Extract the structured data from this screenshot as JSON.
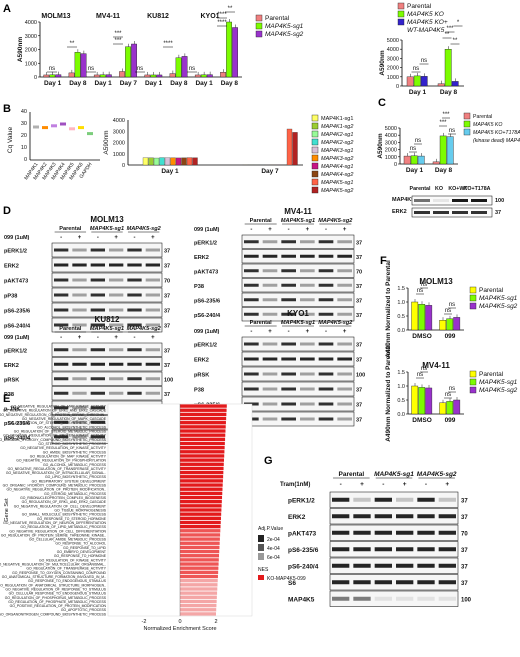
{
  "panels": {
    "A": "A",
    "B": "B",
    "C": "C",
    "D": "D",
    "E": "E",
    "F": "F",
    "G": "G"
  },
  "colors": {
    "parental": "#f08080",
    "sg1": "#7cfc00",
    "sg2": "#9932cc",
    "ko_wt": "#3322cc",
    "ko_t178a": "#66ccee",
    "yellow": "#ffff00",
    "bar_red": "#e31a1c",
    "bar_pink": "#f4a6a6"
  },
  "panel_A_left": {
    "title_cells": [
      "MOLM13",
      "MV4-11",
      "KU812",
      "KYO1"
    ],
    "ylabel": "A590nm",
    "yticks": [
      "0",
      "1000",
      "2000",
      "3000",
      "4000"
    ],
    "xlabels": [
      "Day 1",
      "Day 8",
      "Day 1",
      "Day 7",
      "Day 1",
      "Day 8",
      "Day 1",
      "Day 8"
    ],
    "legend": [
      "Parental",
      "MAP4K5-sg1",
      "MAP4K5-sg2"
    ],
    "sig": [
      "ns",
      "**",
      "ns",
      "***",
      "***",
      "ns",
      "****",
      "ns",
      "****",
      "**",
      "****"
    ]
  },
  "panel_A_right": {
    "ylabel": "A590nm",
    "yticks": [
      "0",
      "1000",
      "2000",
      "3000",
      "4000",
      "5000"
    ],
    "xlabels": [
      "Day 1",
      "Day 8"
    ],
    "legend": [
      "Parental",
      "MAP4K5 KO",
      "MAP4K5 KO+",
      "WT-MAP4K5"
    ],
    "sig": [
      "ns",
      "ns",
      "**",
      "***",
      "*",
      "**"
    ]
  },
  "panel_B": {
    "ylabel_left": "Cq Value",
    "yticks_left": [
      "0",
      "10",
      "20",
      "30",
      "40"
    ],
    "genes": [
      "MAP4K1",
      "MAP4K2",
      "MAP4K3",
      "MAP4K4",
      "MAP4K5",
      "MAP4K6",
      "GAPDH"
    ],
    "ylabel_right": "A590nm",
    "yticks_right": [
      "0",
      "1000",
      "2000",
      "3000",
      "4000"
    ],
    "xlabels": [
      "Day 1",
      "Day 7"
    ],
    "legend": [
      "MAP4K1-sg1",
      "MAP4K1-sg2",
      "MAP4K2-sg1",
      "MAP4K2-sg2",
      "MAP4K3-sg1",
      "MAP4K3-sg2",
      "MAP4K4-sg1",
      "MAP4K4-sg2",
      "MAP4K5-sg1",
      "MAP4K5-sg2"
    ]
  },
  "panel_C": {
    "ylabel": "A590nm",
    "yticks": [
      "0",
      "1000",
      "2000",
      "3000",
      "4000",
      "5000"
    ],
    "xlabels": [
      "Day 1",
      "Day 8"
    ],
    "legend": [
      "Parental",
      "MAP4K5 KO",
      "MAP4K5 KO+T178A",
      "(kinase dead) MAP4K5"
    ],
    "sig": [
      "ns",
      "ns",
      "***",
      "***",
      "ns"
    ],
    "blot_cols": [
      "Parental",
      "KO",
      "KO+WT",
      "KO+T178A"
    ],
    "blot_rows": [
      "MAP4K5",
      "ERK2"
    ],
    "mw": [
      "100",
      "37"
    ]
  },
  "panel_D": {
    "molm13": {
      "groups": [
        "Parental",
        "MAP4K5-sg1",
        "MAP4K5-sg2"
      ],
      "treat": "099 (1uM)",
      "signs": [
        "-",
        "+",
        "-",
        "+",
        "-",
        "+"
      ],
      "rows": [
        "pERK1/2",
        "ERK2",
        "pAKT473",
        "pP38",
        "pS6-235/6",
        "pS6-240/4"
      ],
      "mw": [
        "37",
        "37",
        "70",
        "37",
        "37",
        "37"
      ],
      "title": "MOLM13"
    },
    "mv411": {
      "title": "MV4-11",
      "groups": [
        "Parental",
        "MAP4K5-sg1",
        "MAP4K5-sg2"
      ],
      "treat": "099 (1uM)",
      "signs": [
        "-",
        "+",
        "-",
        "+",
        "-",
        "+"
      ],
      "rows": [
        "pERK1/2",
        "ERK2",
        "pAKT473",
        "P38",
        "pS6-235/6",
        "pS6-240/4"
      ],
      "mw": [
        "37",
        "37",
        "70",
        "37",
        "37",
        "37"
      ]
    },
    "ku812": {
      "title": "KU812",
      "groups": [
        "Parental",
        "MAP4K5-sg1",
        "MAP4K5-sg2"
      ],
      "treat": "099 (1uM)",
      "signs": [
        "-",
        "+",
        "-",
        "+",
        "-",
        "+"
      ],
      "rows": [
        "pERK1/2",
        "ERK2",
        "pRSK",
        "P38",
        "p-JNK",
        "pS6-235/6",
        "pS6-240/4"
      ],
      "mw": [
        "37",
        "37",
        "100",
        "37",
        "50",
        "37",
        "37"
      ]
    },
    "kyo1": {
      "title": "KYO1",
      "groups": [
        "Parental",
        "MAP4K5-sg1",
        "MAP4K5-sg2"
      ],
      "treat": "099 (1uM)",
      "signs": [
        "-",
        "+",
        "-",
        "+",
        "-",
        "+"
      ],
      "rows": [
        "pERK1/2",
        "ERK2",
        "pRSK",
        "P38",
        "pS6-235/6",
        "pS6-240/4"
      ],
      "mw": [
        "37",
        "37",
        "100",
        "37",
        "37",
        "37"
      ]
    }
  },
  "panel_E": {
    "ylabel": "Gene Set",
    "xlabel": "Normalized Enrichment Score",
    "xticks": [
      "-2",
      "0",
      "2"
    ],
    "legend_title": "Adj.P.Value",
    "legend_vals": [
      "2e-04",
      "4e-04",
      "6e-04"
    ],
    "nes_title": "NES",
    "nes_label": "KO-MAP4K5-099",
    "genesets": [
      "GO_NEGATIVE_REGULATION_OF_MAP_KINASE_ACTIVITY",
      "GO_NEGATIVE_REGULATION_OF_ERK1_AND_ERK2_CASCADE",
      "GO_NEGATIVE_REGULATION_OF_PROTEIN_SERINE_THREONIN..",
      "GO_NEGATIVE_REGULATION_OF_MAPK_CASCADE",
      "GO_REGULATION_OF_STEROID_BIOSYNTHETIC_PROCESS",
      "GO_ALCOHOL_BIOSYNTHETIC_PROCESS",
      "GO_REGULATION_OF_STEROID_METABOLIC_PROCESS",
      "GO_NEGATIVE_REGULATION_OF_PROTEIN_KINASE_ACTIVITY",
      "GO_ORGANIC_HYDROXY_COMPOUND_BIOSYNTHETIC_PROCESS",
      "GO_STEROID_BIOSYNTHETIC_PROCESS",
      "GO_NEGATIVE_REGULATION_OF_KINASE_ACTIVITY",
      "GO_AMIDE_BIOSYNTHETIC_PROCESS",
      "GO_REGULATION_OF_MAP_KINASE_ACTIVITY",
      "GO_NEGATIVE_REGULATION_OF_PHOSPHORYLATION",
      "GO_ALCOHOL_METABOLIC_PROCESS",
      "GO_NEGATIVE_REGULATION_OF_TRANSFERASE_ACTIVITY",
      "GO_NEGATIVE_REGULATION_OF_INTRACELLULAR_SIGNAL..",
      "GO_LIPID_BIOSYNTHETIC_PROCESS",
      "GO_RESPIRATORY_SYSTEM_DEVELOPMENT",
      "GO_ORGANIC_HYDROXY_COMPOUND_METABOLIC_PROCESS",
      "GO_NEGATIVE_REGULATION_OF_PROTEIN_MODIFICATION..",
      "GO_STEROID_METABOLIC_PROCESS",
      "GO_RIBONUCLEOPROTEIN_COMPLEX_BIOGENESIS",
      "GO_REGULATION_OF_ERK1_AND_ERK2_CASCADE",
      "GO_NEGATIVE_REGULATION_OF_CELL_DEVELOPMENT",
      "GO_TISSUE_MORPHOGENESIS",
      "GO_SMALL_MOLECULE_BIOSYNTHETIC_PROCESS",
      "GO_RESPONSE_TO_STEROID_HORMONE",
      "GO_NEGATIVE_REGULATION_OF_NEURON_DIFFERENTIATION",
      "GO_REGULATION_OF_LIPID_METABOLIC_PROCESS",
      "GO_NEGATIVE_REGULATION_OF_CELL_DIFFERENTIATION",
      "GO_REGULATION_OF_PROTEIN_SERINE_THREONINE_KINASE..",
      "GO_CELLULAR_AMIDE_METABOLIC_PROCESS",
      "GO_RESPONSE_TO_ALCOHOL",
      "GO_RESPONSE_TO_LIPID",
      "GO_EMBRYO_DEVELOPMENT",
      "GO_RESPONSE_TO_HORMONE",
      "GO_REGULATION_OF_KINASE_ACTIVITY",
      "GO_NEGATIVE_REGULATION_OF_MULTICELLULAR_ORGANISMAL..",
      "GO_REGULATION_OF_TRANSFERASE_ACTIVITY",
      "GO_RESPONSE_TO_OXYGEN_CONTAINING_COMPOUND",
      "GO_ANATOMICAL_STRUCTURE_FORMATION_INVOLVED_IN_M..",
      "GO_RESPONSE_TO_ENDOGENOUS_STIMULUS",
      "GO_REGULATION_OF_ANATOMICAL_STRUCTURE_MORPHOGEN..",
      "GO_NEGATIVE_REGULATION_OF_RESPONSE_TO_STIMULUS",
      "GO_CELLULAR_RESPONSE_TO_ENDOGENOUS_STIMULUS",
      "GO_REGULATION_OF_PHOSPHORUS_METABOLIC_PROCESS",
      "GO_REGULATION_OF_PHOSPHATE_METABOLIC_PROCESS",
      "GO_POSITIVE_REGULATION_OF_PROTEIN_MODIFICATION",
      "GO_APOPTOTIC_PROCESS",
      "GO_ORGANONITROGEN_COMPOUND_BIOSYNTHETIC_PROCESS"
    ]
  },
  "panel_F": {
    "molm13": {
      "title": "MOLM13",
      "ylabel": "A490nm Normalized to Parental",
      "yticks": [
        "0.0",
        "0.5",
        "1.0",
        "1.5"
      ],
      "xlabels": [
        "DMSO",
        "099"
      ],
      "legend": [
        "Parental",
        "MAP4K5-sg1",
        "MAP4K5-sg2"
      ],
      "sig": [
        "ns",
        "ns",
        "ns",
        "ns"
      ]
    },
    "mv411": {
      "title": "MV4-11",
      "ylabel": "A490nm Normalized to Parental",
      "yticks": [
        "0.0",
        "0.5",
        "1.0",
        "1.5"
      ],
      "xlabels": [
        "DMSO",
        "099"
      ],
      "legend": [
        "Parental",
        "MAP4K5-sg1",
        "MAP4K5-sg2"
      ],
      "sig": [
        "ns",
        "ns",
        "ns",
        "ns"
      ]
    }
  },
  "panel_G": {
    "groups": [
      "Parental",
      "MAP4K5-sg1",
      "MAP4K5-sg2"
    ],
    "treat": "Tram(1nM)",
    "signs": [
      "-",
      "+",
      "-",
      "+",
      "-",
      "+"
    ],
    "rows": [
      "pERK1/2",
      "ERK2",
      "pAKT473",
      "pS6-235/6",
      "pS6-240/4",
      "S6",
      "MAP4K5"
    ],
    "mw": [
      "37",
      "37",
      "70",
      "37",
      "37",
      "37",
      "100"
    ]
  },
  "chart_data": [
    {
      "type": "bar",
      "categories": [
        "MOLM13 Day 1",
        "MOLM13 Day 8",
        "MV4-11 Day 1",
        "MV4-11 Day 7",
        "KU812 Day 1",
        "KU812 Day 8",
        "KYO1 Day 1",
        "KYO1 Day 8"
      ],
      "series": [
        {
          "name": "Parental",
          "values": [
            150,
            300,
            150,
            400,
            150,
            250,
            150,
            350
          ]
        },
        {
          "name": "MAP4K5-sg1",
          "values": [
            160,
            1800,
            160,
            2200,
            150,
            1400,
            160,
            4000
          ]
        },
        {
          "name": "MAP4K5-sg2",
          "values": [
            170,
            1700,
            170,
            2400,
            150,
            1500,
            170,
            3600
          ]
        }
      ],
      "ylabel": "A590nm",
      "ylim": [
        0,
        4000
      ]
    },
    {
      "type": "bar",
      "categories": [
        "Day 1",
        "Day 8"
      ],
      "series": [
        {
          "name": "Parental",
          "values": [
            1000,
            250
          ]
        },
        {
          "name": "MAP4K5 KO",
          "values": [
            1100,
            4000
          ]
        },
        {
          "name": "MAP4K5 KO+ WT-MAP4K5",
          "values": [
            1050,
            500
          ]
        }
      ],
      "ylabel": "A590nm",
      "ylim": [
        0,
        5000
      ]
    },
    {
      "type": "bar",
      "categories": [
        "Day 1",
        "Day 8"
      ],
      "series": [
        {
          "name": "Parental",
          "values": [
            1100,
            300
          ]
        },
        {
          "name": "MAP4K5 KO",
          "values": [
            1150,
            3900
          ]
        },
        {
          "name": "MAP4K5 KO+T178A (kinase dead) MAP4K5",
          "values": [
            1100,
            3800
          ]
        }
      ],
      "ylabel": "A590nm",
      "ylim": [
        0,
        5000
      ]
    },
    {
      "type": "bar",
      "categories": [
        "DMSO",
        "099"
      ],
      "series": [
        {
          "name": "Parental",
          "values": [
            1.0,
            0.35
          ]
        },
        {
          "name": "MAP4K5-sg1",
          "values": [
            0.92,
            0.4
          ]
        },
        {
          "name": "MAP4K5-sg2",
          "values": [
            0.88,
            0.45
          ]
        }
      ],
      "title": "MOLM13",
      "ylabel": "A490nm Normalized to Parental",
      "ylim": [
        0,
        1.5
      ]
    },
    {
      "type": "bar",
      "categories": [
        "DMSO",
        "099"
      ],
      "series": [
        {
          "name": "Parental",
          "values": [
            1.0,
            0.4
          ]
        },
        {
          "name": "MAP4K5-sg1",
          "values": [
            0.95,
            0.45
          ]
        },
        {
          "name": "MAP4K5-sg2",
          "values": [
            0.93,
            0.5
          ]
        }
      ],
      "title": "MV4-11",
      "ylabel": "A490nm Normalized to Parental",
      "ylim": [
        0,
        1.5
      ]
    }
  ]
}
